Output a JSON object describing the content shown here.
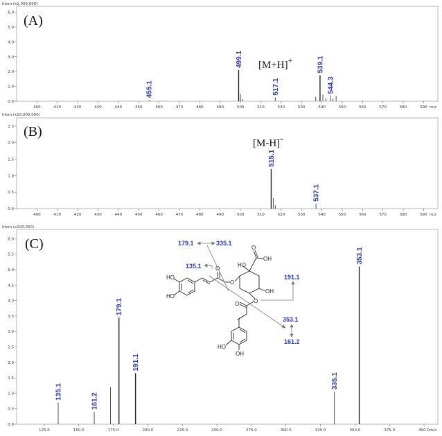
{
  "chart_data": [
    {
      "type": "bar",
      "panel": "(A)",
      "intensity_label": "Inten.(x1,000,000)",
      "xunit": "m/z",
      "xlim": [
        390,
        597
      ],
      "ylim": [
        0,
        6.4
      ],
      "xticks": [
        400,
        410,
        420,
        430,
        440,
        450,
        460,
        470,
        480,
        490,
        500,
        510,
        520,
        530,
        540,
        550,
        560,
        570,
        580,
        590
      ],
      "yticks": [
        0,
        1,
        2,
        3,
        4,
        5,
        6
      ],
      "ytick_labels": [
        "0.0",
        "1.0",
        "2.0",
        "3.0",
        "4.0",
        "5.0",
        "6.0"
      ],
      "ion_label": "[M+H]",
      "ion_sign": "+",
      "peaks": [
        {
          "x": 455.1,
          "y": 0.08,
          "label": "455.1"
        },
        {
          "x": 499.1,
          "y": 2.1,
          "label": "499.1"
        },
        {
          "x": 500.0,
          "y": 0.5,
          "label": ""
        },
        {
          "x": 501.0,
          "y": 0.15,
          "label": ""
        },
        {
          "x": 517.1,
          "y": 0.25,
          "label": "517.1"
        },
        {
          "x": 537.0,
          "y": 0.3,
          "label": ""
        },
        {
          "x": 539.1,
          "y": 1.75,
          "label": "539.1"
        },
        {
          "x": 540.5,
          "y": 0.45,
          "label": ""
        },
        {
          "x": 542.0,
          "y": 0.2,
          "label": ""
        },
        {
          "x": 544.3,
          "y": 0.35,
          "label": "544.3"
        },
        {
          "x": 545.5,
          "y": 0.2,
          "label": ""
        },
        {
          "x": 547.0,
          "y": 0.35,
          "label": ""
        }
      ]
    },
    {
      "type": "bar",
      "panel": "(B)",
      "intensity_label": "Inten.(x10,000,000)",
      "xunit": "m/z",
      "xlim": [
        390,
        597
      ],
      "ylim": [
        0,
        2.75
      ],
      "xticks": [
        400,
        410,
        420,
        430,
        440,
        450,
        460,
        470,
        480,
        490,
        500,
        510,
        520,
        530,
        540,
        550,
        560,
        570,
        580,
        590
      ],
      "yticks": [
        0,
        0.5,
        1,
        1.5,
        2,
        2.5
      ],
      "ytick_labels": [
        "0.0",
        "0.5",
        "1.0",
        "1.5",
        "2.0",
        "2.5"
      ],
      "ion_label": "[M-H]",
      "ion_sign": "-",
      "peaks": [
        {
          "x": 515.1,
          "y": 1.2,
          "label": "515.1"
        },
        {
          "x": 516.1,
          "y": 0.33,
          "label": ""
        },
        {
          "x": 517.1,
          "y": 0.1,
          "label": ""
        },
        {
          "x": 537.1,
          "y": 0.15,
          "label": "537.1"
        }
      ]
    },
    {
      "type": "bar",
      "panel": "(C)",
      "intensity_label": "Inten.(x100,000)",
      "xunit": "m/z",
      "xlim": [
        105,
        410
      ],
      "ylim": [
        0,
        6.3
      ],
      "xticks": [
        125,
        150,
        175,
        200,
        225,
        250,
        275,
        300,
        325,
        350,
        375,
        400
      ],
      "xtick_labels": [
        "125.0",
        "150.0",
        "175.0",
        "200.0",
        "225.0",
        "250.0",
        "275.0",
        "300.0",
        "325.0",
        "350.0",
        "375.0",
        "400.0"
      ],
      "yticks": [
        0,
        0.5,
        1,
        1.5,
        2,
        2.5,
        3,
        3.5,
        4,
        4.5,
        5,
        5.5,
        6
      ],
      "ytick_labels": [
        "0.0",
        "0.5",
        "1.0",
        "1.5",
        "2.0",
        "2.5",
        "3.0",
        "3.5",
        "4.0",
        "4.5",
        "5.0",
        "5.5",
        "6.0"
      ],
      "peaks": [
        {
          "x": 135.1,
          "y": 0.7,
          "label": "135.1"
        },
        {
          "x": 161.2,
          "y": 0.4,
          "label": "161.2"
        },
        {
          "x": 173.0,
          "y": 1.2,
          "label": ""
        },
        {
          "x": 179.1,
          "y": 3.45,
          "label": "179.1"
        },
        {
          "x": 191.1,
          "y": 1.65,
          "label": "191.1"
        },
        {
          "x": 335.1,
          "y": 1.05,
          "label": "335.1"
        },
        {
          "x": 353.1,
          "y": 5.1,
          "label": "353.1"
        }
      ],
      "structure_labels": [
        "179.1",
        "335.1",
        "135.1",
        "191.1",
        "353.1",
        "161.2"
      ],
      "structure_atoms": [
        "HO",
        "HO",
        "OH",
        "O",
        "O",
        "O",
        "O",
        "O",
        "HO",
        "OH",
        "HO",
        "OH"
      ]
    }
  ]
}
